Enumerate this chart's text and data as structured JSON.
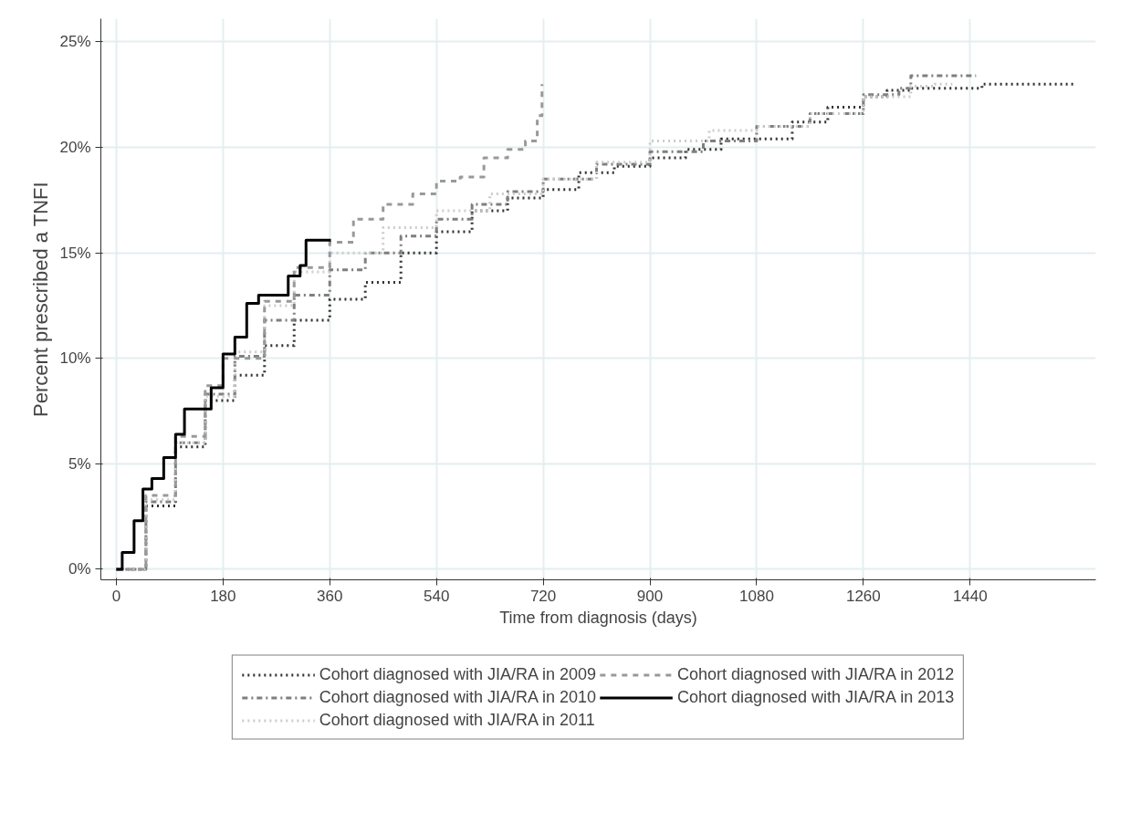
{
  "chart_data": {
    "type": "step",
    "xlabel": "Time from diagnosis (days)",
    "ylabel": "Percent prescribed a TNFI",
    "xlim": [
      -26,
      1652
    ],
    "ylim": [
      -0.5,
      26.1
    ],
    "xticks": [
      0,
      180,
      360,
      540,
      720,
      900,
      1080,
      1260,
      1440
    ],
    "yticks": [
      {
        "value": 0,
        "label": "0%"
      },
      {
        "value": 5,
        "label": "5%"
      },
      {
        "value": 10,
        "label": "10%"
      },
      {
        "value": 15,
        "label": "15%"
      },
      {
        "value": 20,
        "label": "20%"
      },
      {
        "value": 25,
        "label": "25%"
      }
    ],
    "grid": true,
    "legend": "bottom",
    "series": [
      {
        "name": "Cohort diagnosed with JIA/RA in 2009",
        "color": "#333333",
        "line_style": "dotted",
        "x": [
          0,
          50,
          100,
          150,
          200,
          250,
          300,
          360,
          420,
          480,
          540,
          600,
          660,
          720,
          780,
          840,
          900,
          960,
          1020,
          1080,
          1140,
          1200,
          1260,
          1300,
          1340,
          1450,
          1460,
          1617
        ],
        "values": [
          0,
          3.0,
          5.8,
          8.0,
          9.2,
          10.6,
          11.8,
          12.8,
          13.6,
          15.0,
          16.0,
          17.0,
          17.6,
          18.0,
          18.8,
          19.1,
          19.5,
          19.9,
          20.4,
          20.4,
          21.2,
          21.9,
          22.4,
          22.7,
          22.8,
          22.8,
          23.0,
          23.0
        ]
      },
      {
        "name": "Cohort diagnosed with JIA/RA in 2010",
        "color": "#7f7f7f",
        "line_style": "dashdot",
        "x": [
          0,
          50,
          100,
          150,
          200,
          250,
          300,
          360,
          420,
          480,
          540,
          600,
          660,
          720,
          810,
          900,
          990,
          1080,
          1170,
          1260,
          1320,
          1340,
          1450
        ],
        "values": [
          0,
          3.2,
          6.0,
          8.3,
          10.1,
          11.8,
          13.0,
          14.2,
          15.0,
          15.8,
          16.6,
          17.3,
          17.9,
          18.5,
          19.2,
          19.8,
          20.3,
          21.0,
          21.6,
          22.5,
          22.8,
          23.4,
          23.4
        ]
      },
      {
        "name": "Cohort diagnosed with JIA/RA in 2011",
        "color": "#cccccc",
        "line_style": "dotted",
        "x": [
          0,
          50,
          100,
          150,
          200,
          250,
          300,
          360,
          450,
          540,
          630,
          720,
          810,
          900,
          1000,
          1080,
          1170,
          1260,
          1340,
          1380,
          1410
        ],
        "values": [
          0,
          3.3,
          6.0,
          8.2,
          10.3,
          12.5,
          14.1,
          15.0,
          16.2,
          17.0,
          17.8,
          18.5,
          19.3,
          20.3,
          20.8,
          21.0,
          21.6,
          22.4,
          22.9,
          23.0,
          23.0
        ]
      },
      {
        "name": "Cohort diagnosed with JIA/RA in 2012",
        "color": "#999999",
        "line_style": "dashed",
        "x": [
          0,
          50,
          100,
          150,
          180,
          250,
          300,
          360,
          400,
          450,
          500,
          540,
          580,
          620,
          660,
          690,
          710,
          718
        ],
        "values": [
          0,
          3.5,
          6.3,
          8.7,
          10.0,
          12.7,
          14.3,
          15.5,
          16.6,
          17.3,
          17.8,
          18.4,
          18.6,
          19.5,
          19.9,
          20.3,
          21.5,
          23.0
        ]
      },
      {
        "name": "Cohort diagnosed with JIA/RA in 2013",
        "color": "#000000",
        "line_style": "solid",
        "x": [
          0,
          10,
          30,
          45,
          60,
          80,
          100,
          115,
          140,
          160,
          180,
          200,
          220,
          240,
          270,
          290,
          310,
          320,
          362
        ],
        "values": [
          0,
          0.8,
          2.3,
          3.8,
          4.3,
          5.3,
          6.4,
          7.6,
          7.6,
          8.6,
          10.2,
          11.0,
          12.6,
          13.0,
          13.0,
          13.9,
          14.4,
          15.6,
          15.6
        ]
      }
    ]
  }
}
